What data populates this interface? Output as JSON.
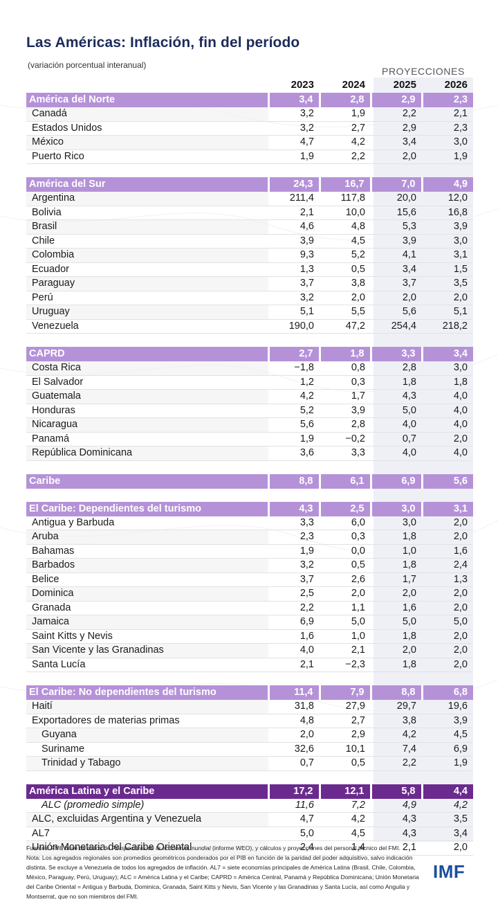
{
  "title": "Las Américas: Inflación, fin del período",
  "subtitle": "(variación porcentual interanual)",
  "projections_label": "PROYECCIONES",
  "years": [
    "2023",
    "2024",
    "2025",
    "2026"
  ],
  "groups": [
    {
      "header": {
        "name": "América del Norte",
        "values": [
          "3,4",
          "2,8",
          "2,9",
          "2,3"
        ]
      },
      "rows": [
        {
          "name": "Canadá",
          "values": [
            "3,2",
            "1,9",
            "2,2",
            "2,1"
          ]
        },
        {
          "name": "Estados Unidos",
          "values": [
            "3,2",
            "2,7",
            "2,9",
            "2,3"
          ]
        },
        {
          "name": "México",
          "values": [
            "4,7",
            "4,2",
            "3,4",
            "3,0"
          ]
        },
        {
          "name": "Puerto Rico",
          "values": [
            "1,9",
            "2,2",
            "2,0",
            "1,9"
          ]
        }
      ]
    },
    {
      "header": {
        "name": "América del Sur",
        "values": [
          "24,3",
          "16,7",
          "7,0",
          "4,9"
        ]
      },
      "rows": [
        {
          "name": "Argentina",
          "values": [
            "211,4",
            "117,8",
            "20,0",
            "12,0"
          ]
        },
        {
          "name": "Bolivia",
          "values": [
            "2,1",
            "10,0",
            "15,6",
            "16,8"
          ]
        },
        {
          "name": "Brasil",
          "values": [
            "4,6",
            "4,8",
            "5,3",
            "3,9"
          ]
        },
        {
          "name": "Chile",
          "values": [
            "3,9",
            "4,5",
            "3,9",
            "3,0"
          ]
        },
        {
          "name": "Colombia",
          "values": [
            "9,3",
            "5,2",
            "4,1",
            "3,1"
          ]
        },
        {
          "name": "Ecuador",
          "values": [
            "1,3",
            "0,5",
            "3,4",
            "1,5"
          ]
        },
        {
          "name": "Paraguay",
          "values": [
            "3,7",
            "3,8",
            "3,7",
            "3,5"
          ]
        },
        {
          "name": "Perú",
          "values": [
            "3,2",
            "2,0",
            "2,0",
            "2,0"
          ]
        },
        {
          "name": "Uruguay",
          "values": [
            "5,1",
            "5,5",
            "5,6",
            "5,1"
          ]
        },
        {
          "name": "Venezuela",
          "values": [
            "190,0",
            "47,2",
            "254,4",
            "218,2"
          ]
        }
      ]
    },
    {
      "header": {
        "name": "CAPRD",
        "values": [
          "2,7",
          "1,8",
          "3,3",
          "3,4"
        ]
      },
      "rows": [
        {
          "name": "Costa Rica",
          "values": [
            "−1,8",
            "0,8",
            "2,8",
            "3,0"
          ]
        },
        {
          "name": "El Salvador",
          "values": [
            "1,2",
            "0,3",
            "1,8",
            "1,8"
          ]
        },
        {
          "name": "Guatemala",
          "values": [
            "4,2",
            "1,7",
            "4,3",
            "4,0"
          ]
        },
        {
          "name": "Honduras",
          "values": [
            "5,2",
            "3,9",
            "5,0",
            "4,0"
          ]
        },
        {
          "name": "Nicaragua",
          "values": [
            "5,6",
            "2,8",
            "4,0",
            "4,0"
          ]
        },
        {
          "name": "Panamá",
          "values": [
            "1,9",
            "−0,2",
            "0,7",
            "2,0"
          ]
        },
        {
          "name": "República Dominicana",
          "values": [
            "3,6",
            "3,3",
            "4,0",
            "4,0"
          ]
        }
      ]
    },
    {
      "header": {
        "name": "Caribe",
        "values": [
          "8,8",
          "6,1",
          "6,9",
          "5,6"
        ]
      },
      "rows": []
    },
    {
      "header": {
        "name": "El Caribe: Dependientes del turismo",
        "values": [
          "4,3",
          "2,5",
          "3,0",
          "3,1"
        ]
      },
      "rows": [
        {
          "name": "Antigua y Barbuda",
          "values": [
            "3,3",
            "6,0",
            "3,0",
            "2,0"
          ]
        },
        {
          "name": "Aruba",
          "values": [
            "2,3",
            "0,3",
            "1,8",
            "2,0"
          ]
        },
        {
          "name": "Bahamas",
          "values": [
            "1,9",
            "0,0",
            "1,0",
            "1,6"
          ]
        },
        {
          "name": "Barbados",
          "values": [
            "3,2",
            "0,5",
            "1,8",
            "2,4"
          ]
        },
        {
          "name": "Belice",
          "values": [
            "3,7",
            "2,6",
            "1,7",
            "1,3"
          ]
        },
        {
          "name": "Dominica",
          "values": [
            "2,5",
            "2,0",
            "2,0",
            "2,0"
          ]
        },
        {
          "name": "Granada",
          "values": [
            "2,2",
            "1,1",
            "1,6",
            "2,0"
          ]
        },
        {
          "name": "Jamaica",
          "values": [
            "6,9",
            "5,0",
            "5,0",
            "5,0"
          ]
        },
        {
          "name": "Saint Kitts y Nevis",
          "values": [
            "1,6",
            "1,0",
            "1,8",
            "2,0"
          ]
        },
        {
          "name": "San Vicente y las Granadinas",
          "values": [
            "4,0",
            "2,1",
            "2,0",
            "2,0"
          ]
        },
        {
          "name": "Santa Lucía",
          "values": [
            "2,1",
            "−2,3",
            "1,8",
            "2,0"
          ]
        }
      ]
    },
    {
      "header": {
        "name": "El Caribe: No dependientes del turismo",
        "values": [
          "11,4",
          "7,9",
          "8,8",
          "6,8"
        ]
      },
      "rows": [
        {
          "name": "Haití",
          "values": [
            "31,8",
            "27,9",
            "29,7",
            "19,6"
          ]
        },
        {
          "name": "Exportadores de materias primas",
          "values": [
            "4,8",
            "2,7",
            "3,8",
            "3,9"
          ]
        },
        {
          "name": "Guyana",
          "values": [
            "2,0",
            "2,9",
            "4,2",
            "4,5"
          ],
          "indent": true
        },
        {
          "name": "Suriname",
          "values": [
            "32,6",
            "10,1",
            "7,4",
            "6,9"
          ],
          "indent": true
        },
        {
          "name": "Trinidad y Tabago",
          "values": [
            "0,7",
            "0,5",
            "2,2",
            "1,9"
          ],
          "indent": true
        }
      ]
    },
    {
      "header": {
        "name": "América Latina y el Caribe",
        "values": [
          "17,2",
          "12,1",
          "5,8",
          "4,4"
        ],
        "dark": true
      },
      "rows": [
        {
          "name": "ALC (promedio simple)",
          "values": [
            "11,6",
            "7,2",
            "4,9",
            "4,2"
          ],
          "italic": true,
          "indent": true
        },
        {
          "name": "ALC, excluidas Argentina y Venezuela",
          "values": [
            "4,7",
            "4,2",
            "4,3",
            "3,5"
          ]
        },
        {
          "name": "AL7",
          "values": [
            "5,0",
            "4,5",
            "4,3",
            "3,4"
          ]
        },
        {
          "name": "Unión Monetaria del Caribe Oriental",
          "values": [
            "2,4",
            "1,4",
            "2,1",
            "2,0"
          ]
        }
      ]
    }
  ],
  "footer": {
    "sources_prefix": "Fuentes: FMI, base de datos de ",
    "sources_italic": "Perspectivas de la economía mundial",
    "sources_suffix": " (informe WEO), y cálculos y proyecciones del personal técnico del FMI.",
    "note": "Nota: Los agregados regionales son promedios geométricos ponderados por el PIB en función de la paridad del poder adquisitivo, salvo indicación distinta. Se excluye a Venezuela de todos los agregados de inflación. AL7 = siete economías principales de América Latina (Brasil, Chile, Colombia, México, Paraguay, Perú, Uruguay); ALC = América Latina y el Caribe; CAPRD = América Central, Panamá y República Dominicana; Unión Monetaria del Caribe Oriental = Antigua y Barbuda, Dominica, Granada, Saint Kitts y Nevis, San Vicente y las Granadinas y Santa Lucía, así como Anguila y Montserrat, que no son miembros del FMI."
  },
  "logo_text": "IMF",
  "colors": {
    "title": "#1c2b5a",
    "header_bg": "#b592d8",
    "header_dark_bg": "#6b2a8e",
    "projection_bg": "#eef0f6",
    "logo": "#1a4fa0"
  }
}
